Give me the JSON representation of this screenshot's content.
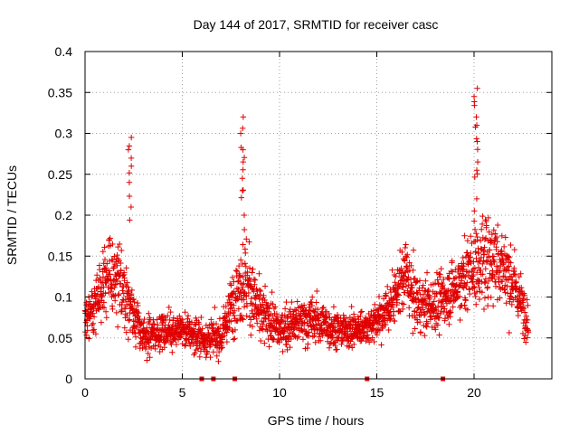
{
  "chart_data": {
    "type": "scatter",
    "title": "Day 144 of 2017, SRMTID for receiver casc",
    "xlabel": "GPS time / hours",
    "ylabel": "SRMTID / TECUs",
    "xlim": [
      0,
      24
    ],
    "ylim": [
      0,
      0.4
    ],
    "xticks": [
      0,
      5,
      10,
      15,
      20
    ],
    "xtick_labels": [
      "0",
      "5",
      "10",
      "15",
      "20"
    ],
    "yticks": [
      0,
      0.05,
      0.1,
      0.15,
      0.2,
      0.25,
      0.3,
      0.35,
      0.4
    ],
    "ytick_labels": [
      "0",
      "0.05",
      "0.1",
      "0.15",
      "0.2",
      "0.25",
      "0.3",
      "0.35",
      "0.4"
    ],
    "grid": true,
    "marker": "plus",
    "color": "#e00000",
    "series": [
      {
        "name": "SRMTID",
        "profile": [
          {
            "x": 0.0,
            "y": 0.07,
            "spread": 0.02
          },
          {
            "x": 0.5,
            "y": 0.09,
            "spread": 0.03
          },
          {
            "x": 1.0,
            "y": 0.13,
            "spread": 0.04
          },
          {
            "x": 1.5,
            "y": 0.12,
            "spread": 0.05
          },
          {
            "x": 2.0,
            "y": 0.11,
            "spread": 0.04
          },
          {
            "x": 2.5,
            "y": 0.08,
            "spread": 0.03
          },
          {
            "x": 3.0,
            "y": 0.05,
            "spread": 0.02
          },
          {
            "x": 4.0,
            "y": 0.06,
            "spread": 0.02
          },
          {
            "x": 5.0,
            "y": 0.06,
            "spread": 0.02
          },
          {
            "x": 6.0,
            "y": 0.05,
            "spread": 0.02
          },
          {
            "x": 7.0,
            "y": 0.05,
            "spread": 0.02
          },
          {
            "x": 7.8,
            "y": 0.11,
            "spread": 0.04
          },
          {
            "x": 8.2,
            "y": 0.12,
            "spread": 0.05
          },
          {
            "x": 9.0,
            "y": 0.08,
            "spread": 0.03
          },
          {
            "x": 10.0,
            "y": 0.06,
            "spread": 0.02
          },
          {
            "x": 11.0,
            "y": 0.07,
            "spread": 0.025
          },
          {
            "x": 12.0,
            "y": 0.07,
            "spread": 0.03
          },
          {
            "x": 13.0,
            "y": 0.06,
            "spread": 0.02
          },
          {
            "x": 14.0,
            "y": 0.06,
            "spread": 0.02
          },
          {
            "x": 15.0,
            "y": 0.07,
            "spread": 0.02
          },
          {
            "x": 16.0,
            "y": 0.1,
            "spread": 0.03
          },
          {
            "x": 16.5,
            "y": 0.13,
            "spread": 0.04
          },
          {
            "x": 17.0,
            "y": 0.09,
            "spread": 0.03
          },
          {
            "x": 18.0,
            "y": 0.09,
            "spread": 0.03
          },
          {
            "x": 19.0,
            "y": 0.11,
            "spread": 0.03
          },
          {
            "x": 20.0,
            "y": 0.14,
            "spread": 0.05
          },
          {
            "x": 21.0,
            "y": 0.15,
            "spread": 0.05
          },
          {
            "x": 22.0,
            "y": 0.12,
            "spread": 0.04
          },
          {
            "x": 22.8,
            "y": 0.07,
            "spread": 0.02
          }
        ],
        "x_range": [
          0,
          22.8
        ],
        "point_spacing_hours": 0.01,
        "peaks": [
          {
            "x": 2.3,
            "width": 0.2,
            "y": [
              0.26,
              0.28,
              0.295,
              0.24,
              0.21
            ]
          },
          {
            "x": 8.1,
            "width": 0.2,
            "y": [
              0.32,
              0.3,
              0.28,
              0.265,
              0.245,
              0.23,
              0.2
            ]
          },
          {
            "x": 20.1,
            "width": 0.2,
            "y": [
              0.355,
              0.345,
              0.32,
              0.31,
              0.29,
              0.265,
              0.255,
              0.22
            ]
          }
        ],
        "zero_points": [
          6.0,
          6.6,
          7.7,
          14.5,
          18.4
        ]
      }
    ]
  }
}
